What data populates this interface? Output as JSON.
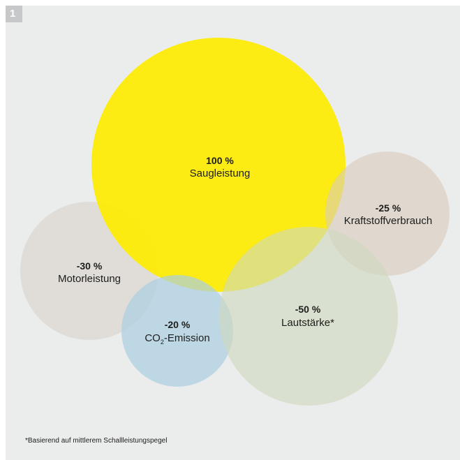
{
  "badge": "1",
  "colors": {
    "background": "#ebecec",
    "badge": "#c6c8c9",
    "saugleistung": "#fdeb00",
    "kraftstoff": "#d9cbbd",
    "motorleistung": "#d8d3cc",
    "co2": "#a9cfe3",
    "lautstaerke": "#cfd9bd"
  },
  "bubbles": {
    "saugleistung": {
      "value": "100 %",
      "label": "Saugleistung"
    },
    "kraftstoff": {
      "value": "-25 %",
      "label": "Kraftstoffverbrauch"
    },
    "motorleistung": {
      "value": "-30 %",
      "label": "Motorleistung"
    },
    "co2": {
      "value": "-20 %",
      "label_pre": "CO",
      "label_sub": "2",
      "label_post": "-Emission"
    },
    "lautstaerke": {
      "value": "-50 %",
      "label": "Lautstärke*"
    }
  },
  "footnote": "*Basierend auf mittlerem Schallleistungspegel"
}
